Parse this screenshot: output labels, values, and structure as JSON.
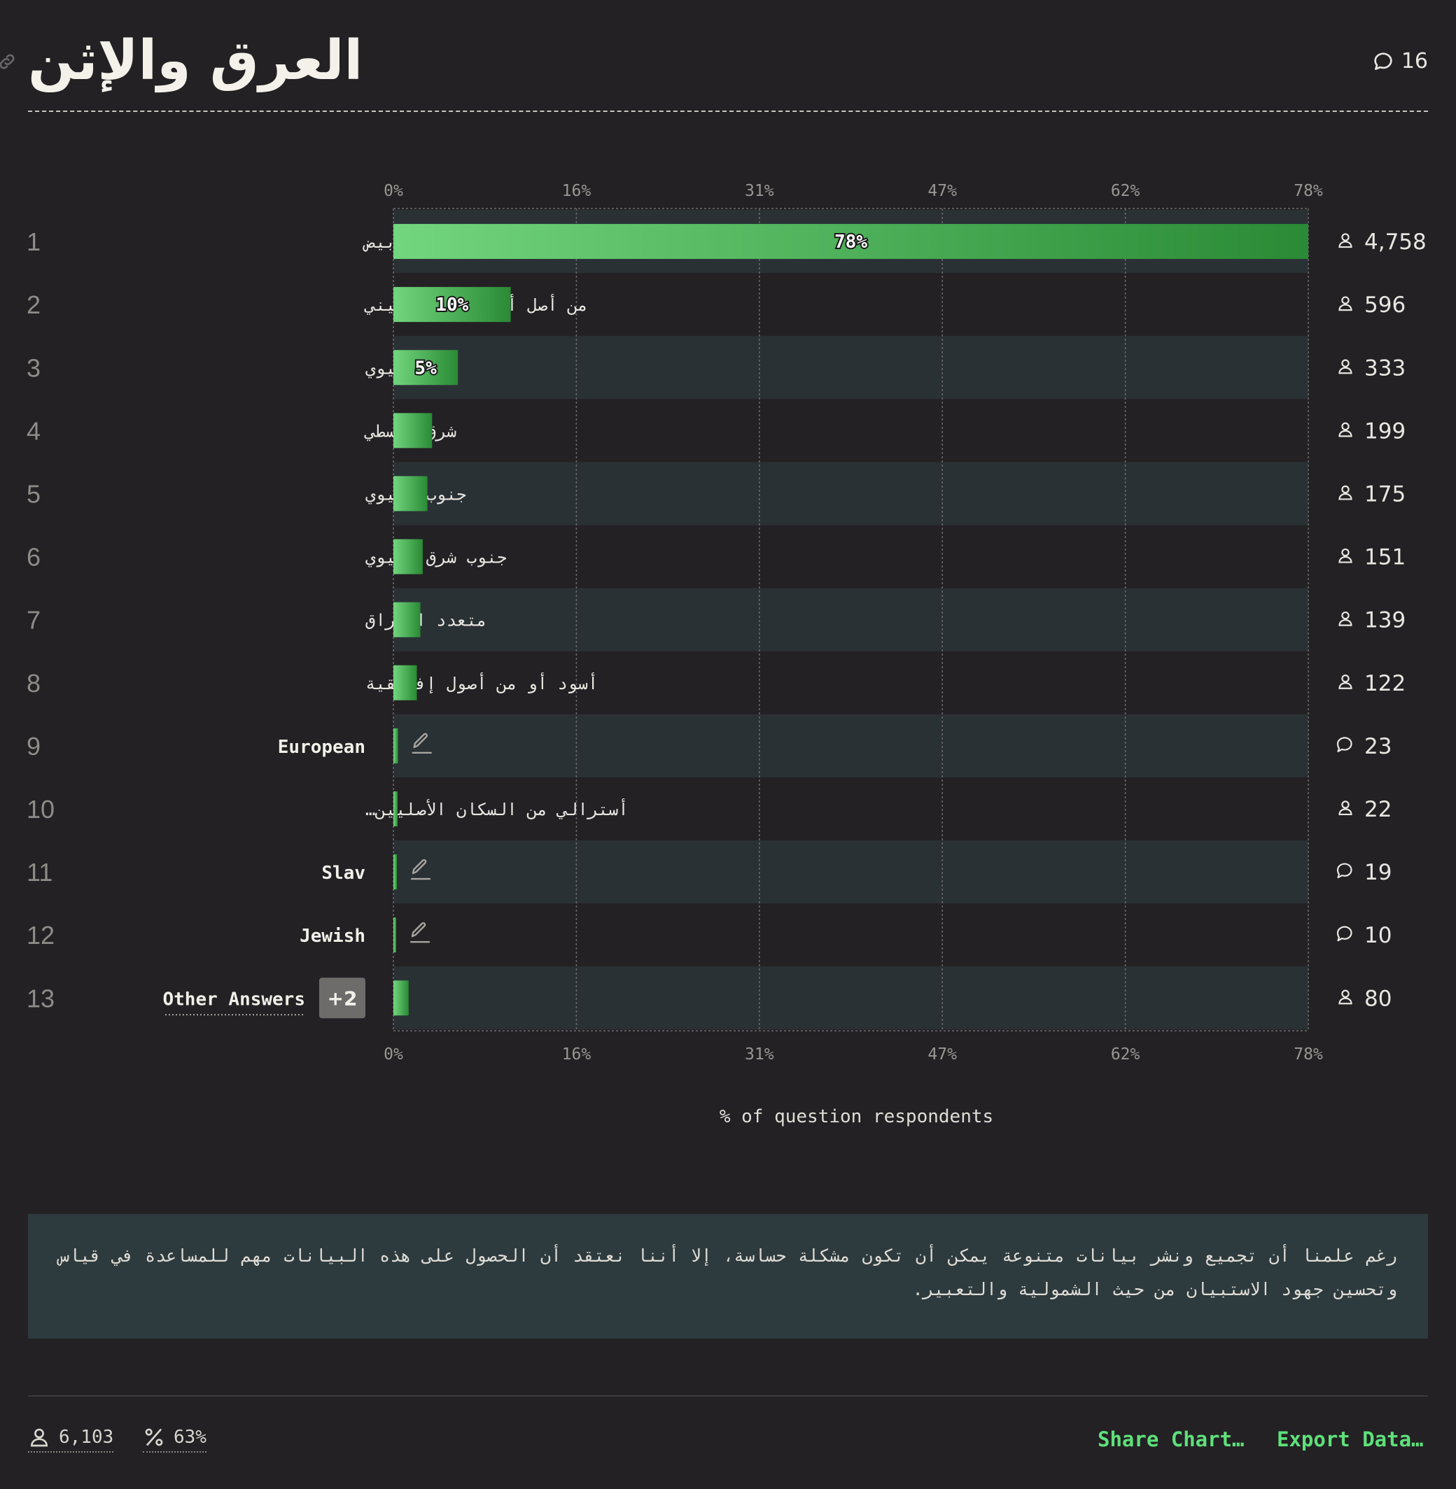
{
  "header": {
    "title": "العرق والإثن",
    "comment_count": "16"
  },
  "chart_data": {
    "type": "bar",
    "orientation": "horizontal",
    "xlabel": "% of question respondents",
    "xlim": [
      0,
      78
    ],
    "x_ticks": [
      "0%",
      "16%",
      "31%",
      "47%",
      "62%",
      "78%"
    ],
    "grid": true,
    "rows": [
      {
        "rank": "1",
        "label": "أبيض",
        "value": 78,
        "value_label": "78%",
        "count": "4,758",
        "count_icon": "person-icon"
      },
      {
        "rank": "2",
        "label": "من أصل أسباني أو لاتيني",
        "value": 10,
        "value_label": "10%",
        "count": "596",
        "count_icon": "person-icon"
      },
      {
        "rank": "3",
        "label": "شرق أسيوي",
        "value": 5.5,
        "value_label": "5%",
        "count": "333",
        "count_icon": "person-icon"
      },
      {
        "rank": "4",
        "label": "شرق أوسطي",
        "value": 3.3,
        "value_label": "",
        "count": "199",
        "count_icon": "person-icon"
      },
      {
        "rank": "5",
        "label": "جنوب أسيوي",
        "value": 2.9,
        "value_label": "",
        "count": "175",
        "count_icon": "person-icon"
      },
      {
        "rank": "6",
        "label": "جنوب شرق أسيوي",
        "value": 2.5,
        "value_label": "",
        "count": "151",
        "count_icon": "person-icon"
      },
      {
        "rank": "7",
        "label": "متعدد الأعراق",
        "value": 2.3,
        "value_label": "",
        "count": "139",
        "count_icon": "person-icon"
      },
      {
        "rank": "8",
        "label": "أسود أو من أصول إفريقية",
        "value": 2.0,
        "value_label": "",
        "count": "122",
        "count_icon": "person-icon"
      },
      {
        "rank": "9",
        "label": "European",
        "value": 0.4,
        "value_label": "",
        "count": "23",
        "count_icon": "comment-icon",
        "write_in": true
      },
      {
        "rank": "10",
        "label": "أسترالي من السكان الأصليين…",
        "value": 0.36,
        "value_label": "",
        "count": "22",
        "count_icon": "person-icon"
      },
      {
        "rank": "11",
        "label": "Slav",
        "value": 0.3,
        "value_label": "",
        "count": "19",
        "count_icon": "comment-icon",
        "write_in": true
      },
      {
        "rank": "12",
        "label": "Jewish",
        "value": 0.16,
        "value_label": "",
        "count": "10",
        "count_icon": "comment-icon",
        "write_in": true
      },
      {
        "rank": "13",
        "label": "Other Answers",
        "value": 1.3,
        "value_label": "",
        "count": "80",
        "count_icon": "person-icon",
        "badge": "+2"
      }
    ]
  },
  "note": "رغم علمنا أن تجميع ونشر بيانات متنوعة يمكن أن تكون مشكلة حساسة، إلا أننا نعتقد أن الحصول على هذه البيانات مهم للمساعدة في قياس وتحسين جهود الاستبيان من حيث الشمولية والتعبير.",
  "footer": {
    "respondents": "6,103",
    "percent": "63%",
    "share_label": "Share Chart…",
    "export_label": "Export Data…"
  },
  "colors": {
    "background": "#232124",
    "row_stripe": "#2a3135",
    "bar_light": "#72d67e",
    "bar_dark": "#2a8a35",
    "accent_link": "#5ee07a",
    "note_bg": "#2e3b3e"
  }
}
